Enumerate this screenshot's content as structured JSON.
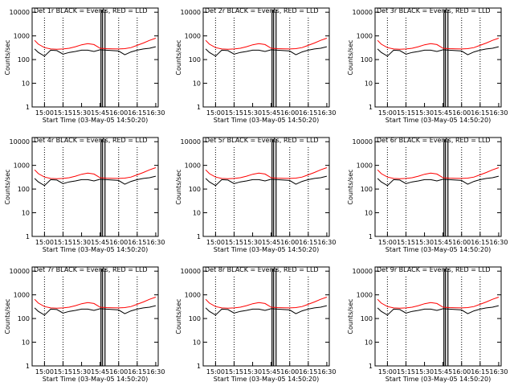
{
  "ylabel": "Counts/sec",
  "xlabel": "Start Time (03-May-05 14:50:20)",
  "xticks": [
    "15:00",
    "15:15",
    "15:30",
    "15:45",
    "16:00",
    "16:15",
    "16:30"
  ],
  "yticks": [
    "1",
    "10",
    "100",
    "1000",
    "10000"
  ],
  "colors": {
    "events": "#000000",
    "lld": "#ff0000"
  },
  "chart_data": [
    {
      "type": "line",
      "title": "Det 1r BLACK = Events, RED = LLD"
    },
    {
      "type": "line",
      "title": "Det 2r BLACK = Events, RED = LLD"
    },
    {
      "type": "line",
      "title": "Det 3r BLACK = Events, RED = LLD"
    },
    {
      "type": "line",
      "title": "Det 4r BLACK = Events, RED = LLD"
    },
    {
      "type": "line",
      "title": "Det 5r BLACK = Events, RED = LLD"
    },
    {
      "type": "line",
      "title": "Det 6r BLACK = Events, RED = LLD"
    },
    {
      "type": "line",
      "title": "Det 7r BLACK = Events, RED = LLD"
    },
    {
      "type": "line",
      "title": "Det 8r BLACK = Events, RED = LLD"
    },
    {
      "type": "line",
      "title": "Det 9r BLACK = Events, RED = LLD"
    }
  ],
  "series_shape": {
    "x": [
      "14:52",
      "14:55",
      "15:00",
      "15:05",
      "15:10",
      "15:15",
      "15:20",
      "15:25",
      "15:30",
      "15:35",
      "15:40",
      "15:45",
      "15:50",
      "15:55",
      "16:00",
      "16:05",
      "16:10",
      "16:15",
      "16:20",
      "16:25",
      "16:30"
    ],
    "lld": [
      650,
      450,
      320,
      280,
      275,
      280,
      300,
      350,
      420,
      470,
      430,
      300,
      290,
      285,
      280,
      290,
      320,
      400,
      500,
      650,
      800
    ],
    "events": [
      280,
      200,
      140,
      250,
      240,
      170,
      200,
      220,
      250,
      250,
      220,
      260,
      250,
      240,
      230,
      160,
      210,
      250,
      280,
      300,
      350
    ]
  }
}
